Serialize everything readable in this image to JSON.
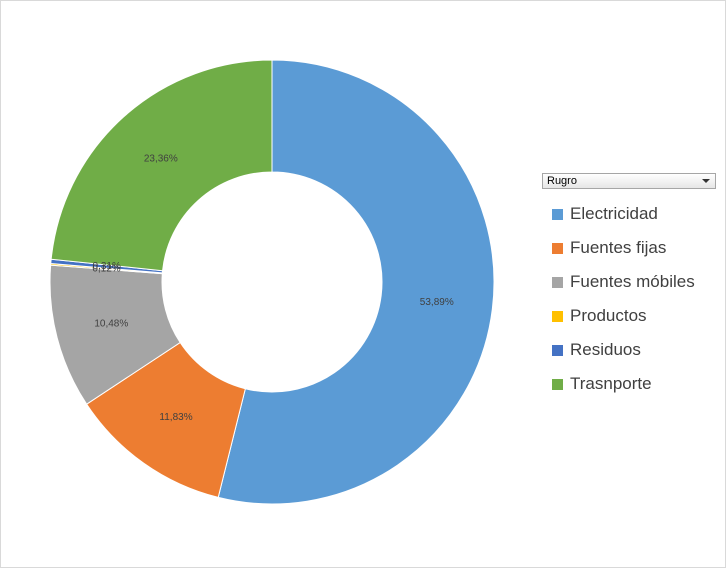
{
  "filter": {
    "label": "Rugro"
  },
  "colors": {
    "Electricidad": "#5b9bd5",
    "Fuentes fijas": "#ed7d31",
    "Fuentes móbiles": "#a5a5a5",
    "Productos": "#ffc000",
    "Residuos": "#4472c4",
    "Trasnporte": "#70ad47"
  },
  "chart_data": {
    "type": "pie",
    "variant": "donut",
    "title": "",
    "categories": [
      "Electricidad",
      "Fuentes fijas",
      "Fuentes móbiles",
      "Productos",
      "Residuos",
      "Trasnporte"
    ],
    "values": [
      53.89,
      11.83,
      10.48,
      0.12,
      0.31,
      23.36
    ],
    "labels": [
      "53,89%",
      "11,83%",
      "10,48%",
      "0,12%",
      "0,31%",
      "23,36%"
    ],
    "legend_position": "right"
  }
}
